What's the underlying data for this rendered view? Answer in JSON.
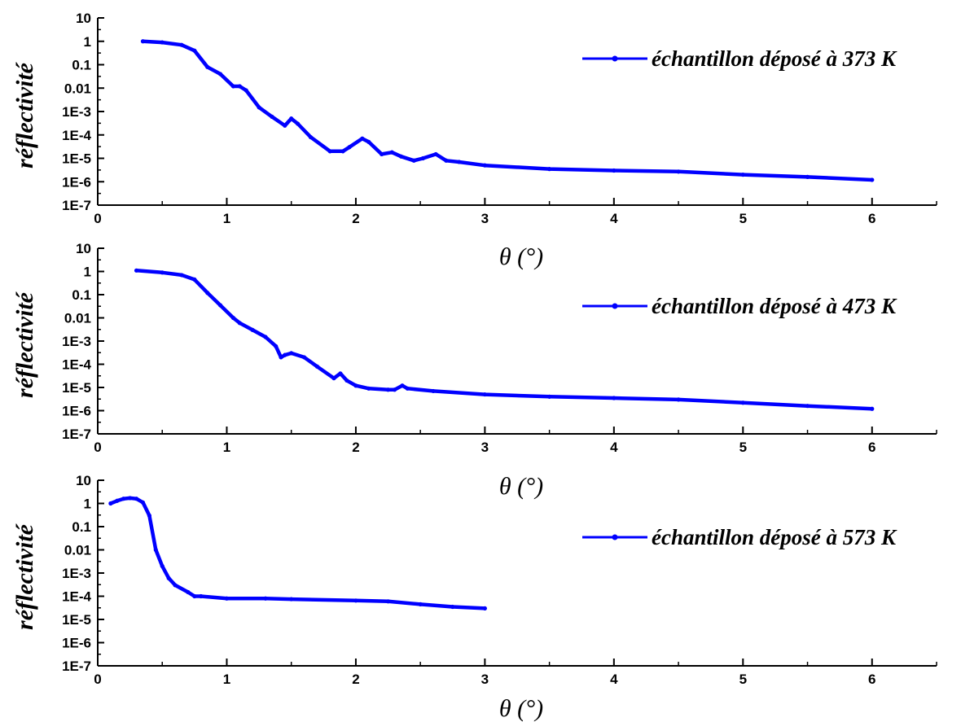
{
  "chart_data": [
    {
      "type": "line",
      "xlabel": "θ (°)",
      "ylabel": "réflectivité",
      "xlim": [
        0,
        6.5
      ],
      "ylim": [
        1e-07,
        10
      ],
      "yscale": "log",
      "x_ticks": [
        "0",
        "1",
        "2",
        "3",
        "4",
        "5",
        "6"
      ],
      "y_ticks": [
        "1E-7",
        "1E-6",
        "1E-5",
        "1E-4",
        "1E-3",
        "0.01",
        "0.1",
        "1",
        "10"
      ],
      "legend_position": "top-right",
      "series": [
        {
          "name": "échantillon déposé à 373 K",
          "color": "#0000ff",
          "x": [
            0.35,
            0.5,
            0.65,
            0.75,
            0.85,
            0.95,
            1.05,
            1.1,
            1.15,
            1.25,
            1.35,
            1.45,
            1.5,
            1.55,
            1.65,
            1.8,
            1.9,
            1.95,
            2.05,
            2.1,
            2.2,
            2.28,
            2.35,
            2.45,
            2.52,
            2.62,
            2.7,
            2.8,
            3.0,
            3.5,
            4.0,
            4.5,
            5.0,
            5.5,
            6.0
          ],
          "y": [
            1.0,
            0.9,
            0.7,
            0.4,
            0.08,
            0.04,
            0.012,
            0.012,
            0.008,
            0.0015,
            0.0006,
            0.00025,
            0.0005,
            0.0003,
            8e-05,
            2e-05,
            2e-05,
            3e-05,
            7e-05,
            5e-05,
            1.5e-05,
            1.8e-05,
            1.2e-05,
            8e-06,
            1e-05,
            1.5e-05,
            8e-06,
            7e-06,
            5e-06,
            3.5e-06,
            3e-06,
            2.7e-06,
            2e-06,
            1.6e-06,
            1.2e-06
          ]
        },
        {
          "name": "échantillon déposé à 473 K",
          "color": "#0000ff",
          "x": [
            0.3,
            0.5,
            0.65,
            0.75,
            0.85,
            0.95,
            1.05,
            1.1,
            1.2,
            1.3,
            1.38,
            1.42,
            1.45,
            1.5,
            1.6,
            1.7,
            1.83,
            1.88,
            1.93,
            2.0,
            2.1,
            2.25,
            2.3,
            2.36,
            2.4,
            2.6,
            3.0,
            3.5,
            4.0,
            4.5,
            5.0,
            5.5,
            6.0
          ],
          "y": [
            1.1,
            0.9,
            0.7,
            0.45,
            0.12,
            0.035,
            0.01,
            0.006,
            0.003,
            0.0015,
            0.0006,
            0.0002,
            0.00025,
            0.0003,
            0.0002,
            8e-05,
            2.5e-05,
            4e-05,
            2e-05,
            1.2e-05,
            9e-06,
            8e-06,
            8e-06,
            1.2e-05,
            9e-06,
            7e-06,
            5e-06,
            4e-06,
            3.5e-06,
            3e-06,
            2.2e-06,
            1.6e-06,
            1.2e-06
          ]
        },
        {
          "name": "échantillon déposé à 573 K",
          "color": "#0000ff",
          "x": [
            0.1,
            0.15,
            0.2,
            0.25,
            0.3,
            0.35,
            0.4,
            0.45,
            0.5,
            0.55,
            0.6,
            0.7,
            0.75,
            0.8,
            1.0,
            1.3,
            1.5,
            2.0,
            2.25,
            2.5,
            2.75,
            3.0
          ],
          "y": [
            1.0,
            1.3,
            1.6,
            1.7,
            1.6,
            1.1,
            0.3,
            0.01,
            0.002,
            0.0006,
            0.0003,
            0.00015,
            0.0001,
            0.0001,
            8e-05,
            8e-05,
            7.5e-05,
            6.5e-05,
            6e-05,
            4.5e-05,
            3.5e-05,
            3e-05
          ]
        }
      ]
    }
  ]
}
